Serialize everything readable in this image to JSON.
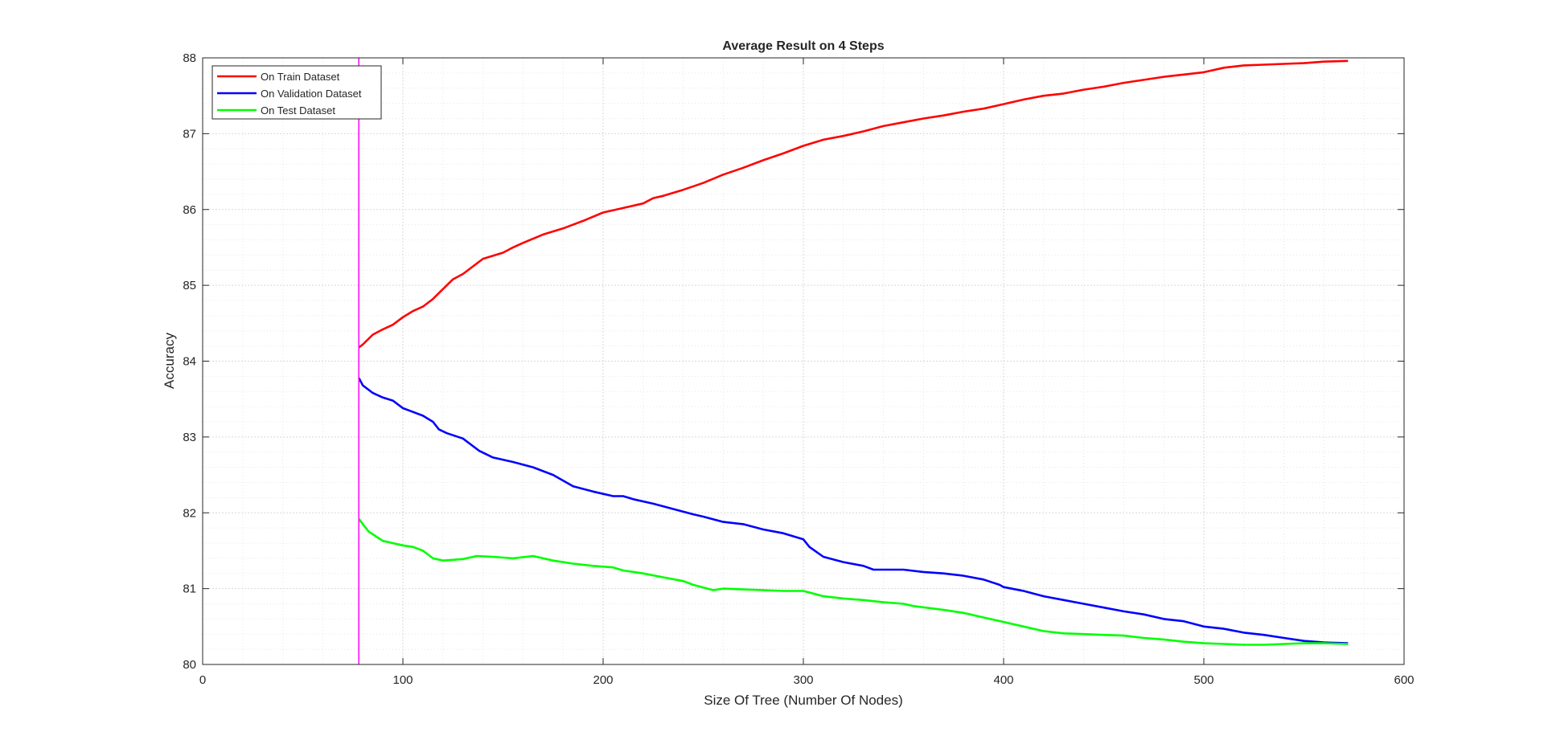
{
  "chart_data": {
    "type": "line",
    "title": "Average Result on 4 Steps",
    "xlabel": "Size Of Tree (Number Of Nodes)",
    "ylabel": "Accuracy",
    "xlim": [
      0,
      600
    ],
    "ylim": [
      80,
      88
    ],
    "xticks": [
      0,
      100,
      200,
      300,
      400,
      500,
      600
    ],
    "yticks": [
      80,
      81,
      82,
      83,
      84,
      85,
      86,
      87,
      88
    ],
    "grid": true,
    "minor_grid": true,
    "legend_position": "top-left",
    "vertical_line": {
      "x": 78,
      "color": "#ff00ff"
    },
    "series": [
      {
        "name": "On Train Dataset",
        "color": "#ff0000",
        "x": [
          78,
          80,
          85,
          90,
          95,
          100,
          105,
          110,
          115,
          120,
          125,
          130,
          135,
          140,
          150,
          155,
          160,
          170,
          180,
          190,
          200,
          210,
          220,
          225,
          230,
          240,
          250,
          260,
          270,
          280,
          290,
          300,
          310,
          320,
          330,
          340,
          350,
          360,
          370,
          380,
          390,
          400,
          410,
          420,
          430,
          440,
          450,
          460,
          470,
          480,
          490,
          500,
          510,
          520,
          530,
          540,
          550,
          560,
          572
        ],
        "values": [
          84.18,
          84.22,
          84.35,
          84.42,
          84.48,
          84.58,
          84.66,
          84.72,
          84.82,
          84.95,
          85.08,
          85.15,
          85.25,
          85.35,
          85.43,
          85.5,
          85.56,
          85.67,
          85.75,
          85.85,
          85.96,
          86.02,
          86.08,
          86.15,
          86.18,
          86.26,
          86.35,
          86.46,
          86.55,
          86.65,
          86.74,
          86.84,
          86.92,
          86.97,
          87.03,
          87.1,
          87.15,
          87.2,
          87.24,
          87.29,
          87.33,
          87.39,
          87.45,
          87.5,
          87.53,
          87.58,
          87.62,
          87.67,
          87.71,
          87.75,
          87.78,
          87.81,
          87.87,
          87.9,
          87.91,
          87.92,
          87.93,
          87.95,
          87.96
        ]
      },
      {
        "name": "On Validation Dataset",
        "color": "#0000ff",
        "x": [
          78,
          80,
          85,
          90,
          95,
          100,
          105,
          110,
          115,
          118,
          122,
          130,
          138,
          145,
          155,
          165,
          175,
          185,
          195,
          205,
          210,
          215,
          225,
          235,
          245,
          250,
          260,
          270,
          280,
          290,
          300,
          303,
          310,
          320,
          330,
          335,
          350,
          360,
          370,
          380,
          390,
          398,
          400,
          410,
          420,
          430,
          440,
          450,
          460,
          470,
          480,
          490,
          500,
          510,
          520,
          530,
          540,
          550,
          560,
          572
        ],
        "values": [
          83.78,
          83.68,
          83.58,
          83.52,
          83.48,
          83.38,
          83.33,
          83.28,
          83.2,
          83.1,
          83.05,
          82.98,
          82.82,
          82.73,
          82.67,
          82.6,
          82.5,
          82.35,
          82.28,
          82.22,
          82.22,
          82.18,
          82.12,
          82.05,
          81.98,
          81.95,
          81.88,
          81.85,
          81.78,
          81.73,
          81.65,
          81.55,
          81.42,
          81.35,
          81.3,
          81.25,
          81.25,
          81.22,
          81.2,
          81.17,
          81.12,
          81.05,
          81.02,
          80.97,
          80.9,
          80.85,
          80.8,
          80.75,
          80.7,
          80.66,
          80.6,
          80.57,
          80.5,
          80.47,
          80.42,
          80.39,
          80.35,
          80.31,
          80.29,
          80.28
        ]
      },
      {
        "name": "On Test Dataset",
        "color": "#00ff00",
        "x": [
          78,
          80,
          83,
          86,
          90,
          95,
          100,
          105,
          110,
          115,
          120,
          125,
          130,
          137,
          145,
          155,
          165,
          175,
          185,
          195,
          205,
          210,
          220,
          230,
          240,
          245,
          255,
          260,
          270,
          280,
          290,
          300,
          310,
          320,
          330,
          340,
          350,
          355,
          370,
          380,
          390,
          400,
          410,
          420,
          430,
          440,
          450,
          460,
          470,
          480,
          490,
          500,
          510,
          520,
          530,
          540,
          550,
          560,
          572
        ],
        "values": [
          81.92,
          81.85,
          81.75,
          81.7,
          81.63,
          81.6,
          81.57,
          81.55,
          81.5,
          81.4,
          81.37,
          81.38,
          81.39,
          81.43,
          81.42,
          81.4,
          81.43,
          81.37,
          81.33,
          81.3,
          81.28,
          81.24,
          81.2,
          81.15,
          81.1,
          81.05,
          80.98,
          81.0,
          80.99,
          80.98,
          80.97,
          80.97,
          80.9,
          80.87,
          80.85,
          80.82,
          80.8,
          80.77,
          80.72,
          80.68,
          80.62,
          80.56,
          80.5,
          80.44,
          80.41,
          80.4,
          80.39,
          80.38,
          80.35,
          80.33,
          80.3,
          80.28,
          80.27,
          80.26,
          80.26,
          80.27,
          80.28,
          80.28,
          80.27
        ]
      }
    ]
  }
}
